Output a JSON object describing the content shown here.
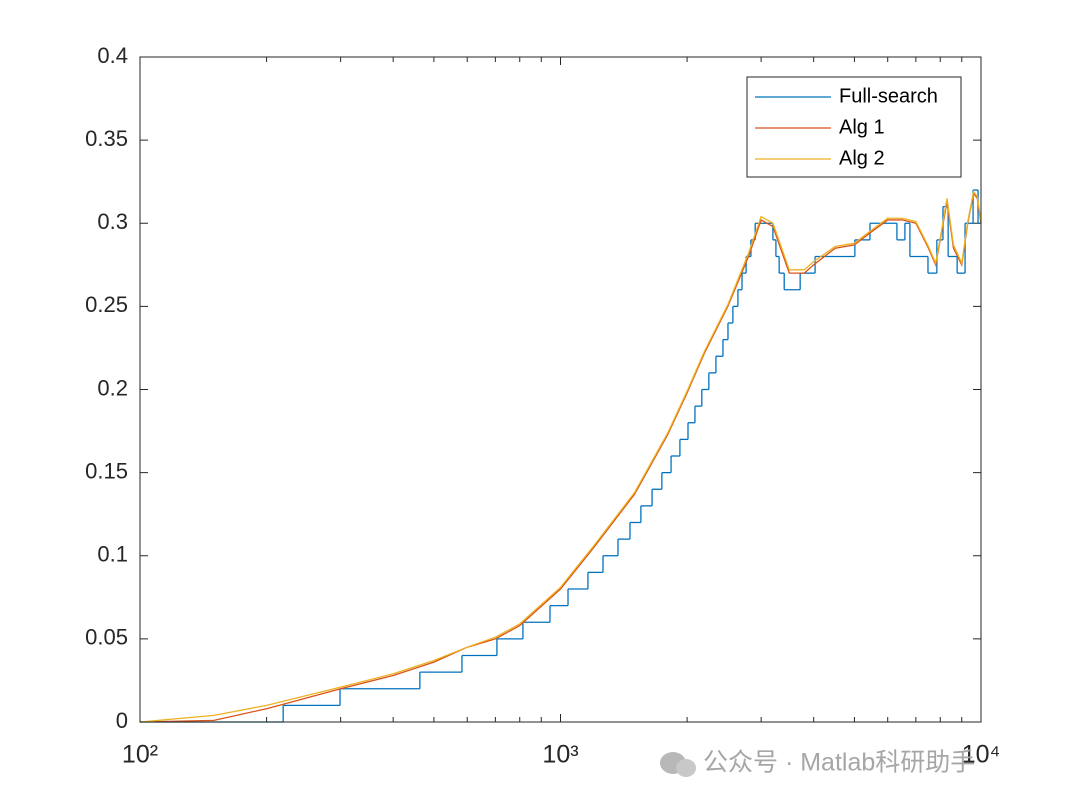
{
  "chart_data": {
    "type": "line",
    "xscale": "log",
    "xlim": [
      100,
      10000
    ],
    "ylim": [
      0,
      0.4
    ],
    "xticks": [
      {
        "value": 100,
        "label": "10²"
      },
      {
        "value": 1000,
        "label": "10³"
      },
      {
        "value": 10000,
        "label": "10⁴"
      }
    ],
    "yticks": [
      0,
      0.05,
      0.1,
      0.15,
      0.2,
      0.25,
      0.3,
      0.35,
      0.4
    ],
    "legend": "northeast",
    "series": [
      {
        "name": "Full-search",
        "color": "#0072bd",
        "step": true,
        "x": [
          100,
          219,
          299,
          463,
          583,
          706,
          814,
          944,
          1042,
          1162,
          1262,
          1370,
          1463,
          1553,
          1651,
          1742,
          1832,
          1923,
          2010,
          2088,
          2168,
          2253,
          2342,
          2434,
          2502,
          2570,
          2642,
          2702,
          2763,
          2837,
          2904,
          3200,
          3253,
          3311,
          3404,
          3715,
          4031,
          5012,
          5445,
          6310,
          6592,
          6776,
          7480,
          7853,
          8120,
          8353,
          8775,
          9164,
          9575,
          9840,
          10000
        ],
        "values": [
          0,
          0.01,
          0.02,
          0.03,
          0.04,
          0.05,
          0.06,
          0.07,
          0.08,
          0.09,
          0.1,
          0.11,
          0.12,
          0.13,
          0.14,
          0.15,
          0.16,
          0.17,
          0.18,
          0.19,
          0.2,
          0.21,
          0.22,
          0.23,
          0.24,
          0.25,
          0.26,
          0.27,
          0.28,
          0.29,
          0.3,
          0.29,
          0.28,
          0.27,
          0.26,
          0.27,
          0.28,
          0.29,
          0.3,
          0.29,
          0.3,
          0.28,
          0.27,
          0.29,
          0.31,
          0.28,
          0.27,
          0.3,
          0.32,
          0.3,
          0.3
        ]
      },
      {
        "name": "Alg 1",
        "color": "#d95319",
        "x": [
          100,
          150,
          200,
          300,
          400,
          500,
          600,
          700,
          800,
          1000,
          1200,
          1500,
          1800,
          2000,
          2200,
          2500,
          2800,
          3000,
          3200,
          3500,
          3800,
          4000,
          4500,
          5000,
          5500,
          6000,
          6500,
          7000,
          7500,
          7800,
          8000,
          8300,
          8600,
          9000,
          9300,
          9600,
          9800,
          10000
        ],
        "values": [
          0,
          0.001,
          0.008,
          0.02,
          0.028,
          0.036,
          0.045,
          0.05,
          0.058,
          0.08,
          0.105,
          0.137,
          0.173,
          0.198,
          0.222,
          0.25,
          0.28,
          0.302,
          0.298,
          0.27,
          0.27,
          0.275,
          0.285,
          0.287,
          0.295,
          0.302,
          0.302,
          0.3,
          0.285,
          0.275,
          0.29,
          0.313,
          0.285,
          0.275,
          0.3,
          0.318,
          0.315,
          0.3
        ]
      },
      {
        "name": "Alg 2",
        "color": "#edb120",
        "x": [
          100,
          150,
          200,
          300,
          400,
          500,
          600,
          700,
          800,
          1000,
          1200,
          1500,
          1800,
          2000,
          2200,
          2500,
          2800,
          3000,
          3200,
          3500,
          3800,
          4000,
          4500,
          5000,
          5500,
          6000,
          6500,
          7000,
          7500,
          7800,
          8000,
          8300,
          8600,
          9000,
          9300,
          9600,
          9800,
          10000
        ],
        "values": [
          0,
          0.004,
          0.01,
          0.021,
          0.029,
          0.037,
          0.045,
          0.051,
          0.059,
          0.081,
          0.106,
          0.138,
          0.174,
          0.199,
          0.223,
          0.251,
          0.282,
          0.304,
          0.3,
          0.272,
          0.272,
          0.277,
          0.286,
          0.288,
          0.296,
          0.303,
          0.303,
          0.301,
          0.286,
          0.276,
          0.291,
          0.315,
          0.287,
          0.276,
          0.301,
          0.319,
          0.316,
          0.301
        ]
      }
    ]
  },
  "watermark": "公众号 · Matlab科研助手"
}
